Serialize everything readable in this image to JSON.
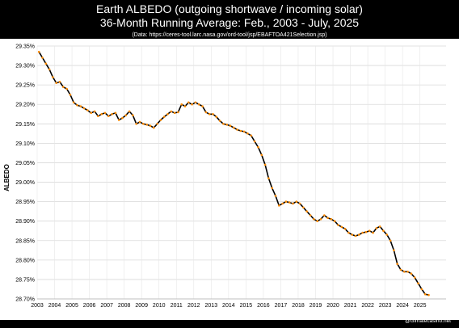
{
  "chart_data": {
    "type": "line",
    "title": "Earth ALBEDO (outgoing shortwave / incoming solar)",
    "subtitle": "36-Month Running Average: Feb., 2003 - July, 2025",
    "source": "(Data: https://ceres-tool.larc.nasa.gov/ord-tool/jsp/EBAFTOA421Selection.jsp)",
    "ylabel": "ALBEDO",
    "xlabel": "",
    "xlim": [
      2003.0,
      2026.5
    ],
    "ylim": [
      28.7,
      29.35
    ],
    "y_ticks": [
      "29.35%",
      "29.30%",
      "29.25%",
      "29.20%",
      "29.15%",
      "29.10%",
      "29.05%",
      "29.00%",
      "28.95%",
      "28.90%",
      "28.85%",
      "28.80%",
      "28.75%",
      "28.70%"
    ],
    "x_ticks": [
      "2003",
      "2004",
      "2005",
      "2006",
      "2007",
      "2008",
      "2009",
      "2010",
      "2011",
      "2012",
      "2013",
      "2014",
      "2015",
      "2016",
      "2017",
      "2018",
      "2019",
      "2020",
      "2021",
      "2022",
      "2023",
      "2024",
      "2025"
    ],
    "grid": true,
    "legend": "none",
    "line_color": "#000000",
    "marker_color": "#ff8c00",
    "series": [
      {
        "x": [
          2003.1,
          2003.3,
          2003.5,
          2003.7,
          2003.9,
          2004.1,
          2004.3,
          2004.5,
          2004.7,
          2004.9,
          2005.1,
          2005.3,
          2005.5,
          2005.7,
          2005.9,
          2006.1,
          2006.3,
          2006.5,
          2006.7,
          2006.9,
          2007.1,
          2007.3,
          2007.5,
          2007.7,
          2007.9,
          2008.1,
          2008.3,
          2008.5,
          2008.7,
          2008.9,
          2009.1,
          2009.3,
          2009.5,
          2009.7,
          2009.9,
          2010.1,
          2010.3,
          2010.5,
          2010.7,
          2010.9,
          2011.1,
          2011.3,
          2011.5,
          2011.7,
          2011.9,
          2012.1,
          2012.3,
          2012.5,
          2012.7,
          2012.9,
          2013.1,
          2013.3,
          2013.5,
          2013.7,
          2013.9,
          2014.1,
          2014.3,
          2014.5,
          2014.7,
          2014.9,
          2015.1,
          2015.3,
          2015.5,
          2015.7,
          2015.9,
          2016.1,
          2016.3,
          2016.5,
          2016.7,
          2016.9,
          2017.1,
          2017.3,
          2017.5,
          2017.7,
          2017.9,
          2018.1,
          2018.3,
          2018.5,
          2018.7,
          2018.9,
          2019.1,
          2019.3,
          2019.5,
          2019.7,
          2019.9,
          2020.1,
          2020.3,
          2020.5,
          2020.7,
          2020.9,
          2021.1,
          2021.3,
          2021.5,
          2021.7,
          2021.9,
          2022.1,
          2022.3,
          2022.5,
          2022.7,
          2022.9,
          2023.1,
          2023.3,
          2023.5,
          2023.7,
          2023.9,
          2024.1,
          2024.3,
          2024.5,
          2024.7,
          2024.9,
          2025.1,
          2025.3,
          2025.5
        ],
        "values": [
          29.335,
          29.32,
          29.305,
          29.29,
          29.27,
          29.255,
          29.258,
          29.245,
          29.24,
          29.225,
          29.205,
          29.198,
          29.195,
          29.19,
          29.185,
          29.178,
          29.182,
          29.17,
          29.175,
          29.178,
          29.17,
          29.175,
          29.178,
          29.16,
          29.165,
          29.172,
          29.182,
          29.172,
          29.15,
          29.155,
          29.15,
          29.148,
          29.145,
          29.14,
          29.15,
          29.16,
          29.168,
          29.175,
          29.182,
          29.178,
          29.18,
          29.2,
          29.195,
          29.205,
          29.2,
          29.205,
          29.2,
          29.195,
          29.18,
          29.175,
          29.175,
          29.168,
          29.158,
          29.15,
          29.148,
          29.145,
          29.14,
          29.135,
          29.132,
          29.13,
          29.125,
          29.12,
          29.105,
          29.09,
          29.07,
          29.045,
          29.01,
          28.985,
          28.965,
          28.94,
          28.945,
          28.95,
          28.948,
          28.945,
          28.95,
          28.945,
          28.935,
          28.925,
          28.915,
          28.905,
          28.9,
          28.905,
          28.915,
          28.908,
          28.905,
          28.9,
          28.89,
          28.885,
          28.88,
          28.87,
          28.865,
          28.862,
          28.865,
          28.87,
          28.872,
          28.875,
          28.87,
          28.882,
          28.886,
          28.875,
          28.865,
          28.85,
          28.825,
          28.79,
          28.775,
          28.77,
          28.77,
          28.765,
          28.755,
          28.74,
          28.725,
          28.712,
          28.71
        ]
      }
    ]
  },
  "footer": {
    "credit": "@climatecasino.net"
  }
}
